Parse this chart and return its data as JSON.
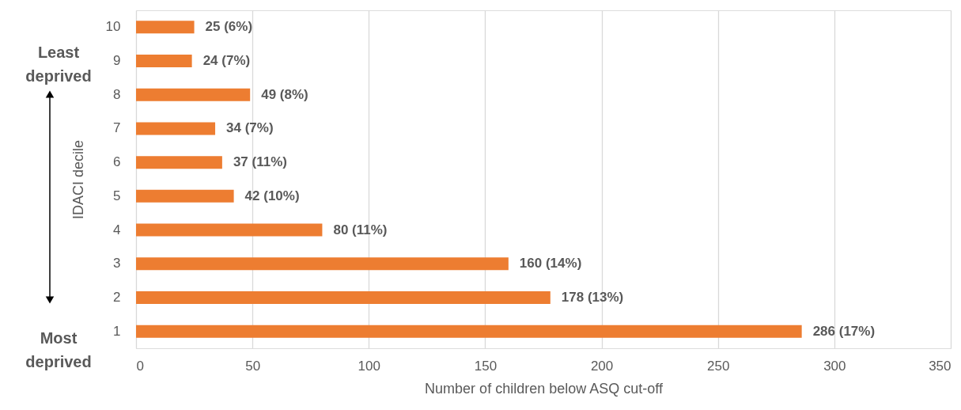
{
  "chart_data": {
    "type": "bar",
    "orientation": "horizontal",
    "categories": [
      "10",
      "9",
      "8",
      "7",
      "6",
      "5",
      "4",
      "3",
      "2",
      "1"
    ],
    "values": [
      25,
      24,
      49,
      34,
      37,
      42,
      80,
      160,
      178,
      286
    ],
    "value_labels": [
      "25 (6%)",
      "24 (7%)",
      "49 (8%)",
      "34 (7%)",
      "37 (11%)",
      "42 (10%)",
      "80 (11%)",
      "160 (14%)",
      "178 (13%)",
      "286 (17%)"
    ],
    "color": "#ed7d31",
    "xlabel": "Number of children below ASQ cut-off",
    "ylabel": "IDACI decile",
    "xlim": [
      0,
      350
    ],
    "xticks": [
      0,
      50,
      100,
      150,
      200,
      250,
      300,
      350
    ],
    "grid": "x",
    "annotations": [
      "Least deprived",
      "Most deprived"
    ]
  }
}
